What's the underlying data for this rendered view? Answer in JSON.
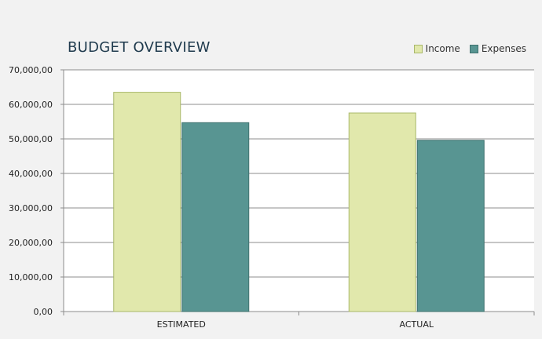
{
  "chart_data": {
    "type": "bar",
    "title": "BUDGET OVERVIEW",
    "categories": [
      "ESTIMATED",
      "ACTUAL"
    ],
    "series": [
      {
        "name": "Income",
        "values": [
          63500,
          57500
        ],
        "color": "#e1e8ac"
      },
      {
        "name": "Expenses",
        "values": [
          54700,
          49600
        ],
        "color": "#589592"
      }
    ],
    "ylim": [
      0,
      70000
    ],
    "yticks": [
      0,
      10000,
      20000,
      30000,
      40000,
      50000,
      60000,
      70000
    ],
    "ytick_labels": [
      "0,00",
      "10,000,00",
      "20,000,00",
      "30,000,00",
      "40,000,00",
      "50,000,00",
      "60,000,00",
      "70,000,00"
    ],
    "grid": true,
    "legend_position": "top-right"
  }
}
